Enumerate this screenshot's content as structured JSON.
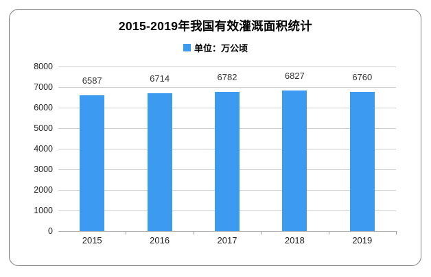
{
  "card": {
    "title": "2015-2019年我国有效灌溉面积统计"
  },
  "legend": {
    "label": "单位：万公顷",
    "swatch_color": "#3c9af0"
  },
  "colors": {
    "bar": "#3c9af0",
    "gridline": "#cccccc",
    "axis_line": "#b0b0b0",
    "tick": "#999999",
    "frame_border": "#7d7d7d",
    "label_text": "#333333",
    "title_text": "#000000"
  },
  "chart_data": {
    "type": "bar",
    "title": "2015-2019年我国有效灌溉面积统计",
    "legend_entries": [
      "单位：万公顷"
    ],
    "legend_position": "top",
    "categories": [
      "2015",
      "2016",
      "2017",
      "2018",
      "2019"
    ],
    "values": [
      6587,
      6714,
      6782,
      6827,
      6760
    ],
    "xlabel": "",
    "ylabel": "万公顷",
    "ylim": [
      0,
      8000
    ],
    "yticks": [
      0,
      1000,
      2000,
      3000,
      4000,
      5000,
      6000,
      7000,
      8000
    ],
    "grid": true,
    "bar_value_labels_shown": true
  }
}
